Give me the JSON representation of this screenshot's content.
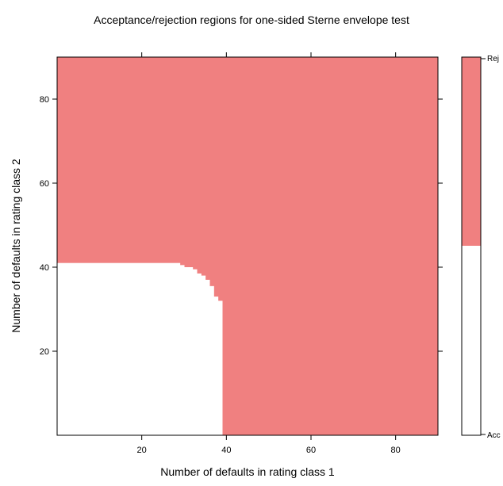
{
  "chart_data": {
    "type": "heatmap",
    "title": "Acceptance/rejection regions for one-sided Sterne envelope test",
    "xlabel": "Number of defaults in rating class 1",
    "ylabel": "Number of defaults in rating class 2",
    "xlim": [
      0,
      90
    ],
    "ylim": [
      0,
      90
    ],
    "x_ticks": [
      20,
      40,
      60,
      80
    ],
    "y_ticks": [
      20,
      40,
      60,
      80
    ],
    "grid": false,
    "legend": {
      "placement": "right",
      "labels": [
        "Rej",
        "Acc"
      ]
    },
    "colors": {
      "reject": "#f08080",
      "accept": "#ffffff",
      "axis": "#000000"
    },
    "regions": {
      "acceptance_boundary": [
        {
          "x_from": 0,
          "x_to": 29,
          "y_max": 41
        },
        {
          "x_from": 29,
          "x_to": 30,
          "y_max": 40.5
        },
        {
          "x_from": 30,
          "x_to": 32,
          "y_max": 40
        },
        {
          "x_from": 32,
          "x_to": 33,
          "y_max": 39.5
        },
        {
          "x_from": 33,
          "x_to": 34,
          "y_max": 38.5
        },
        {
          "x_from": 34,
          "x_to": 35,
          "y_max": 38
        },
        {
          "x_from": 35,
          "x_to": 36,
          "y_max": 37
        },
        {
          "x_from": 36,
          "x_to": 37,
          "y_max": 35.5
        },
        {
          "x_from": 37,
          "x_to": 38,
          "y_max": 33
        },
        {
          "x_from": 38,
          "x_to": 39,
          "y_max": 32
        }
      ]
    }
  }
}
